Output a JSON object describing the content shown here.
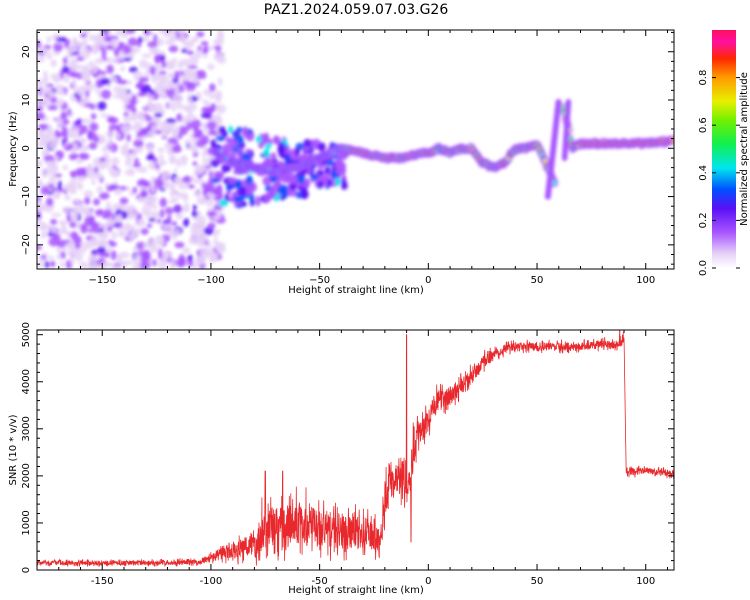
{
  "figure": {
    "title": "PAZ1.2024.059.07.03.G26"
  },
  "chart_data": [
    {
      "type": "heatmap",
      "title": "PAZ1.2024.059.07.03.G26",
      "xlabel": "Height of straight line (km)",
      "ylabel": "Frequency (Hz)",
      "xlim": [
        -180,
        113
      ],
      "ylim": [
        -25,
        24.5
      ],
      "xticks": [
        -150,
        -100,
        -50,
        0,
        50,
        100
      ],
      "yticks": [
        -20,
        -10,
        0,
        10,
        20
      ],
      "colorbar": {
        "label": "Normalized spectral amplitude",
        "ticks": [
          "0.0",
          "0.2",
          "0.4",
          "0.6",
          "0.8"
        ],
        "range": [
          0,
          1
        ],
        "colormap": "gist_ncar-like: white-lavender, purple, blue, cyan, green, yellow, orange, red, magenta"
      },
      "ridge": {
        "description": "signal frequency trace vs height",
        "x": [
          -98,
          -90,
          -80,
          -70,
          -60,
          -50,
          -40,
          -30,
          -20,
          -10,
          -5,
          0,
          5,
          10,
          15,
          20,
          25,
          30,
          35,
          40,
          45,
          50,
          55,
          58,
          60,
          62,
          64,
          66,
          70,
          80,
          90,
          100,
          113
        ],
        "y": [
          -1,
          -3,
          -4,
          -5,
          -4,
          -2,
          0,
          -1,
          -2,
          -2,
          -1,
          -1,
          0,
          -1,
          0,
          0,
          -3,
          -4,
          -3,
          0,
          0,
          1,
          -4,
          -7,
          -9,
          9,
          5,
          0,
          1,
          1,
          1,
          1,
          1.5
        ]
      },
      "grid": false
    },
    {
      "type": "line",
      "xlabel": "Height of straight line (km)",
      "ylabel": "SNR (10 * v/v)",
      "xlim": [
        -180,
        113
      ],
      "ylim": [
        0,
        5100
      ],
      "xticks": [
        -150,
        -100,
        -50,
        0,
        50,
        100
      ],
      "yticks": [
        0,
        1000,
        2000,
        3000,
        4000,
        5000
      ],
      "series": [
        {
          "color": "#e8282c",
          "envelope": {
            "x": [
              -180,
              -150,
              -120,
              -105,
              -100,
              -95,
              -90,
              -85,
              -80,
              -75,
              -70,
              -65,
              -60,
              -55,
              -50,
              -45,
              -40,
              -35,
              -30,
              -25,
              -22,
              -20,
              -18,
              -15,
              -12,
              -10,
              -8,
              -6,
              -4,
              -2,
              0,
              2,
              5,
              10,
              15,
              20,
              25,
              30,
              35,
              40,
              50,
              60,
              70,
              80,
              88,
              90,
              91,
              95,
              100,
              113
            ],
            "mean": [
              150,
              150,
              160,
              170,
              250,
              350,
              400,
              450,
              600,
              900,
              900,
              950,
              1000,
              950,
              900,
              850,
              800,
              800,
              750,
              700,
              650,
              1400,
              2000,
              2000,
              2000,
              2000,
              2200,
              2700,
              3000,
              3000,
              3200,
              3500,
              3600,
              3700,
              3900,
              4100,
              4400,
              4600,
              4700,
              4750,
              4750,
              4750,
              4750,
              4800,
              4800,
              4900,
              2100,
              2100,
              2100,
              2050
            ],
            "noise": [
              80,
              80,
              90,
              90,
              150,
              250,
              300,
              350,
              600,
              800,
              800,
              800,
              800,
              800,
              750,
              700,
              650,
              650,
              600,
              550,
              450,
              700,
              600,
              600,
              650,
              800,
              900,
              500,
              500,
              500,
              450,
              400,
              400,
              350,
              300,
              300,
              250,
              200,
              180,
              150,
              150,
              150,
              150,
              150,
              150,
              200,
              150,
              150,
              120,
              120
            ],
            "spikes": [
              [
                -10,
                5000
              ],
              [
                -8,
                600
              ],
              [
                88,
                5100
              ],
              [
                -75,
                2100
              ],
              [
                -67,
                2100
              ]
            ]
          }
        }
      ],
      "grid": false
    }
  ]
}
